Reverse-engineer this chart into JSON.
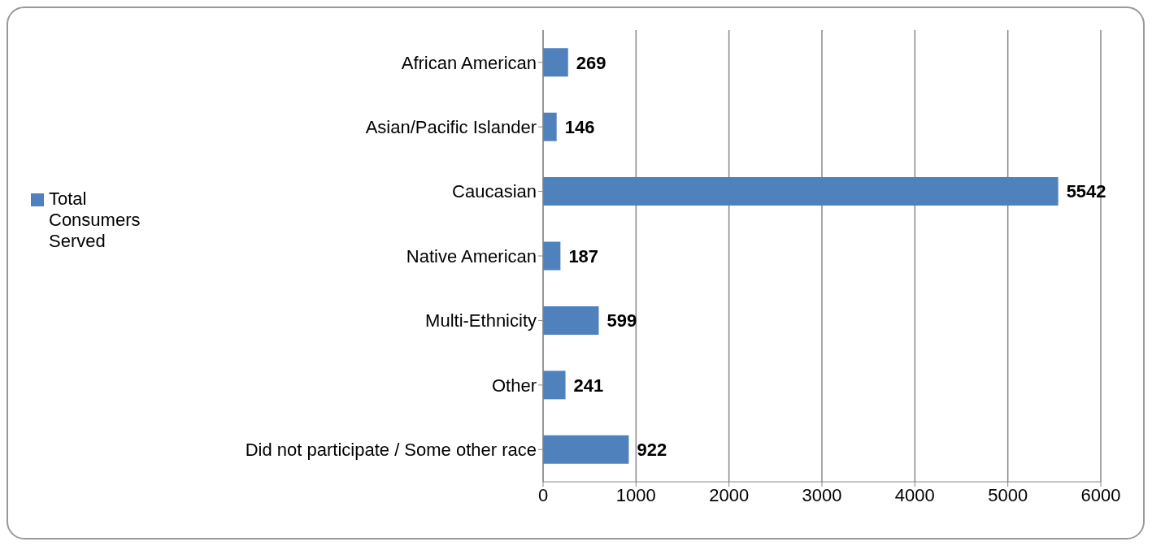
{
  "chart_data": {
    "type": "bar",
    "orientation": "horizontal",
    "categories": [
      "African American",
      "Asian/Pacific Islander",
      "Caucasian",
      "Native American",
      "Multi-Ethnicity",
      "Other",
      "Did not participate / Some other race"
    ],
    "series": [
      {
        "name": "Total Consumers Served",
        "color": "#4f81bd",
        "values": [
          269,
          146,
          5542,
          187,
          599,
          241,
          922
        ]
      }
    ],
    "xlim": [
      0,
      6000
    ],
    "xticks": [
      0,
      1000,
      2000,
      3000,
      4000,
      5000,
      6000
    ],
    "grid": "x",
    "legend": "left",
    "data_labels": true
  }
}
